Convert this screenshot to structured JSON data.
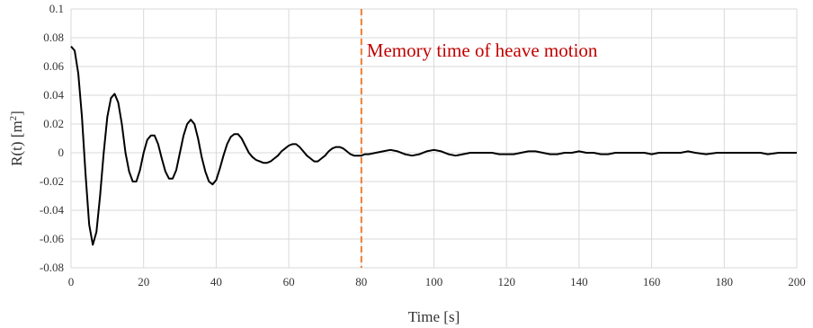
{
  "chart_data": {
    "type": "line",
    "xlabel": "Time [s]",
    "ylabel_main": "R(t) [m",
    "ylabel_sup": "2",
    "ylabel_close": "]",
    "xlim": [
      0,
      200
    ],
    "ylim": [
      -0.08,
      0.1
    ],
    "x_ticks": [
      0,
      20,
      40,
      60,
      80,
      100,
      120,
      140,
      160,
      180,
      200
    ],
    "x_tick_labels": [
      "0",
      "20",
      "40",
      "60",
      "80",
      "100",
      "120",
      "140",
      "160",
      "180",
      "200"
    ],
    "y_ticks": [
      -0.08,
      -0.06,
      -0.04,
      -0.02,
      0,
      0.02,
      0.04,
      0.06,
      0.08,
      0.1
    ],
    "y_tick_labels": [
      "-0.08",
      "-0.06",
      "-0.04",
      "-0.02",
      "0",
      "0.02",
      "0.04",
      "0.06",
      "0.08",
      "0.1"
    ],
    "grid": true,
    "series": [
      {
        "color": "#000000",
        "points": [
          [
            0,
            0.074
          ],
          [
            1,
            0.071
          ],
          [
            2,
            0.055
          ],
          [
            3,
            0.025
          ],
          [
            4,
            -0.015
          ],
          [
            5,
            -0.05
          ],
          [
            6,
            -0.064
          ],
          [
            7,
            -0.055
          ],
          [
            8,
            -0.03
          ],
          [
            9,
            0.0
          ],
          [
            10,
            0.025
          ],
          [
            11,
            0.038
          ],
          [
            12,
            0.041
          ],
          [
            13,
            0.035
          ],
          [
            14,
            0.02
          ],
          [
            15,
            0.0
          ],
          [
            16,
            -0.013
          ],
          [
            17,
            -0.02
          ],
          [
            18,
            -0.02
          ],
          [
            19,
            -0.012
          ],
          [
            20,
            0.0
          ],
          [
            21,
            0.009
          ],
          [
            22,
            0.012
          ],
          [
            23,
            0.012
          ],
          [
            24,
            0.006
          ],
          [
            25,
            -0.004
          ],
          [
            26,
            -0.013
          ],
          [
            27,
            -0.018
          ],
          [
            28,
            -0.018
          ],
          [
            29,
            -0.012
          ],
          [
            30,
            0.0
          ],
          [
            31,
            0.012
          ],
          [
            32,
            0.02
          ],
          [
            33,
            0.023
          ],
          [
            34,
            0.02
          ],
          [
            35,
            0.01
          ],
          [
            36,
            -0.003
          ],
          [
            37,
            -0.013
          ],
          [
            38,
            -0.02
          ],
          [
            39,
            -0.022
          ],
          [
            40,
            -0.019
          ],
          [
            41,
            -0.011
          ],
          [
            42,
            -0.002
          ],
          [
            43,
            0.006
          ],
          [
            44,
            0.011
          ],
          [
            45,
            0.013
          ],
          [
            46,
            0.013
          ],
          [
            47,
            0.01
          ],
          [
            48,
            0.005
          ],
          [
            49,
            0.0
          ],
          [
            50,
            -0.003
          ],
          [
            51,
            -0.005
          ],
          [
            52,
            -0.006
          ],
          [
            53,
            -0.007
          ],
          [
            54,
            -0.007
          ],
          [
            55,
            -0.006
          ],
          [
            56,
            -0.004
          ],
          [
            57,
            -0.002
          ],
          [
            58,
            0.001
          ],
          [
            59,
            0.003
          ],
          [
            60,
            0.005
          ],
          [
            61,
            0.006
          ],
          [
            62,
            0.006
          ],
          [
            63,
            0.004
          ],
          [
            64,
            0.001
          ],
          [
            65,
            -0.002
          ],
          [
            66,
            -0.004
          ],
          [
            67,
            -0.006
          ],
          [
            68,
            -0.006
          ],
          [
            69,
            -0.004
          ],
          [
            70,
            -0.002
          ],
          [
            71,
            0.001
          ],
          [
            72,
            0.003
          ],
          [
            73,
            0.004
          ],
          [
            74,
            0.004
          ],
          [
            75,
            0.003
          ],
          [
            76,
            0.001
          ],
          [
            77,
            -0.001
          ],
          [
            78,
            -0.002
          ],
          [
            79,
            -0.002
          ],
          [
            80,
            -0.002
          ],
          [
            81,
            -0.001
          ],
          [
            82,
            -0.001
          ],
          [
            84,
            0.0
          ],
          [
            86,
            0.001
          ],
          [
            88,
            0.002
          ],
          [
            90,
            0.001
          ],
          [
            92,
            -0.001
          ],
          [
            94,
            -0.002
          ],
          [
            96,
            -0.001
          ],
          [
            98,
            0.001
          ],
          [
            100,
            0.002
          ],
          [
            102,
            0.001
          ],
          [
            104,
            -0.001
          ],
          [
            106,
            -0.002
          ],
          [
            108,
            -0.001
          ],
          [
            110,
            0.0
          ],
          [
            112,
            0.0
          ],
          [
            114,
            0.0
          ],
          [
            116,
            0.0
          ],
          [
            118,
            -0.001
          ],
          [
            120,
            -0.001
          ],
          [
            122,
            -0.001
          ],
          [
            124,
            0.0
          ],
          [
            126,
            0.001
          ],
          [
            128,
            0.001
          ],
          [
            130,
            0.0
          ],
          [
            132,
            -0.001
          ],
          [
            134,
            -0.001
          ],
          [
            136,
            0.0
          ],
          [
            138,
            0.0
          ],
          [
            140,
            0.001
          ],
          [
            142,
            0.0
          ],
          [
            144,
            0.0
          ],
          [
            146,
            -0.001
          ],
          [
            148,
            -0.001
          ],
          [
            150,
            0.0
          ],
          [
            152,
            0.0
          ],
          [
            155,
            0.0
          ],
          [
            158,
            0.0
          ],
          [
            160,
            -0.001
          ],
          [
            162,
            0.0
          ],
          [
            165,
            0.0
          ],
          [
            168,
            0.0
          ],
          [
            170,
            0.001
          ],
          [
            172,
            0.0
          ],
          [
            175,
            -0.001
          ],
          [
            178,
            0.0
          ],
          [
            180,
            0.0
          ],
          [
            182,
            0.0
          ],
          [
            185,
            0.0
          ],
          [
            188,
            0.0
          ],
          [
            190,
            0.0
          ],
          [
            192,
            -0.001
          ],
          [
            195,
            0.0
          ],
          [
            198,
            0.0
          ],
          [
            200,
            0.0
          ]
        ]
      }
    ],
    "annotation": {
      "text": "Memory time of heave motion",
      "x": 80,
      "line_color": "#ED7D31",
      "text_color": "#C00000"
    }
  }
}
